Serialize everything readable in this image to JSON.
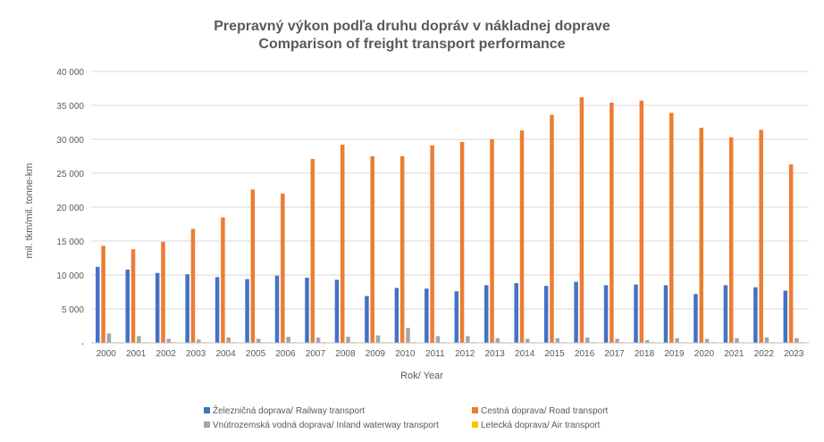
{
  "chart_data": {
    "type": "bar",
    "title": "Prepravný výkon podľa druhu dopráv v nákladnej doprave",
    "subtitle": "Comparison of freight transport performance",
    "xlabel": "Rok/ Year",
    "ylabel": "mil. tkm/mil. tonne-km",
    "ylim": [
      0,
      40000
    ],
    "yticks": [
      0,
      5000,
      10000,
      15000,
      20000,
      25000,
      30000,
      35000,
      40000
    ],
    "ytick_labels": [
      "-",
      "5 000",
      "10 000",
      "15 000",
      "20 000",
      "25 000",
      "30 000",
      "35 000",
      "40 000"
    ],
    "grid": true,
    "legend_position": "bottom",
    "categories": [
      "2000",
      "2001",
      "2002",
      "2003",
      "2004",
      "2005",
      "2006",
      "2007",
      "2008",
      "2009",
      "2010",
      "2011",
      "2012",
      "2013",
      "2014",
      "2015",
      "2016",
      "2017",
      "2018",
      "2019",
      "2020",
      "2021",
      "2022",
      "2023"
    ],
    "series": [
      {
        "name": "Železničná doprava/ Railway transport",
        "color": "#4472C4",
        "values": [
          11200,
          10800,
          10300,
          10100,
          9700,
          9400,
          9900,
          9600,
          9300,
          6900,
          8100,
          8000,
          7600,
          8500,
          8800,
          8400,
          9000,
          8500,
          8600,
          8500,
          7200,
          8500,
          8200,
          7700
        ]
      },
      {
        "name": "Cestná doprava/ Road transport",
        "color": "#ED7D31",
        "values": [
          14300,
          13800,
          14900,
          16800,
          18500,
          22600,
          22000,
          27100,
          29200,
          27500,
          27500,
          29100,
          29600,
          30000,
          31300,
          33600,
          36200,
          35400,
          35700,
          33900,
          31700,
          30300,
          31400,
          26300
        ]
      },
      {
        "name": "Vnútrozemská vodná doprava/ Inland waterway transport",
        "color": "#A5A5A5",
        "values": [
          1400,
          1000,
          600,
          500,
          800,
          600,
          900,
          800,
          900,
          1100,
          2200,
          1000,
          1000,
          700,
          600,
          700,
          800,
          600,
          400,
          700,
          600,
          700,
          800,
          700
        ]
      },
      {
        "name": "Letecká doprava/ Air transport",
        "color": "#FFC000",
        "values": [
          20,
          20,
          20,
          20,
          20,
          20,
          20,
          20,
          20,
          20,
          20,
          20,
          20,
          20,
          20,
          20,
          20,
          20,
          20,
          20,
          20,
          20,
          20,
          20
        ]
      }
    ]
  }
}
